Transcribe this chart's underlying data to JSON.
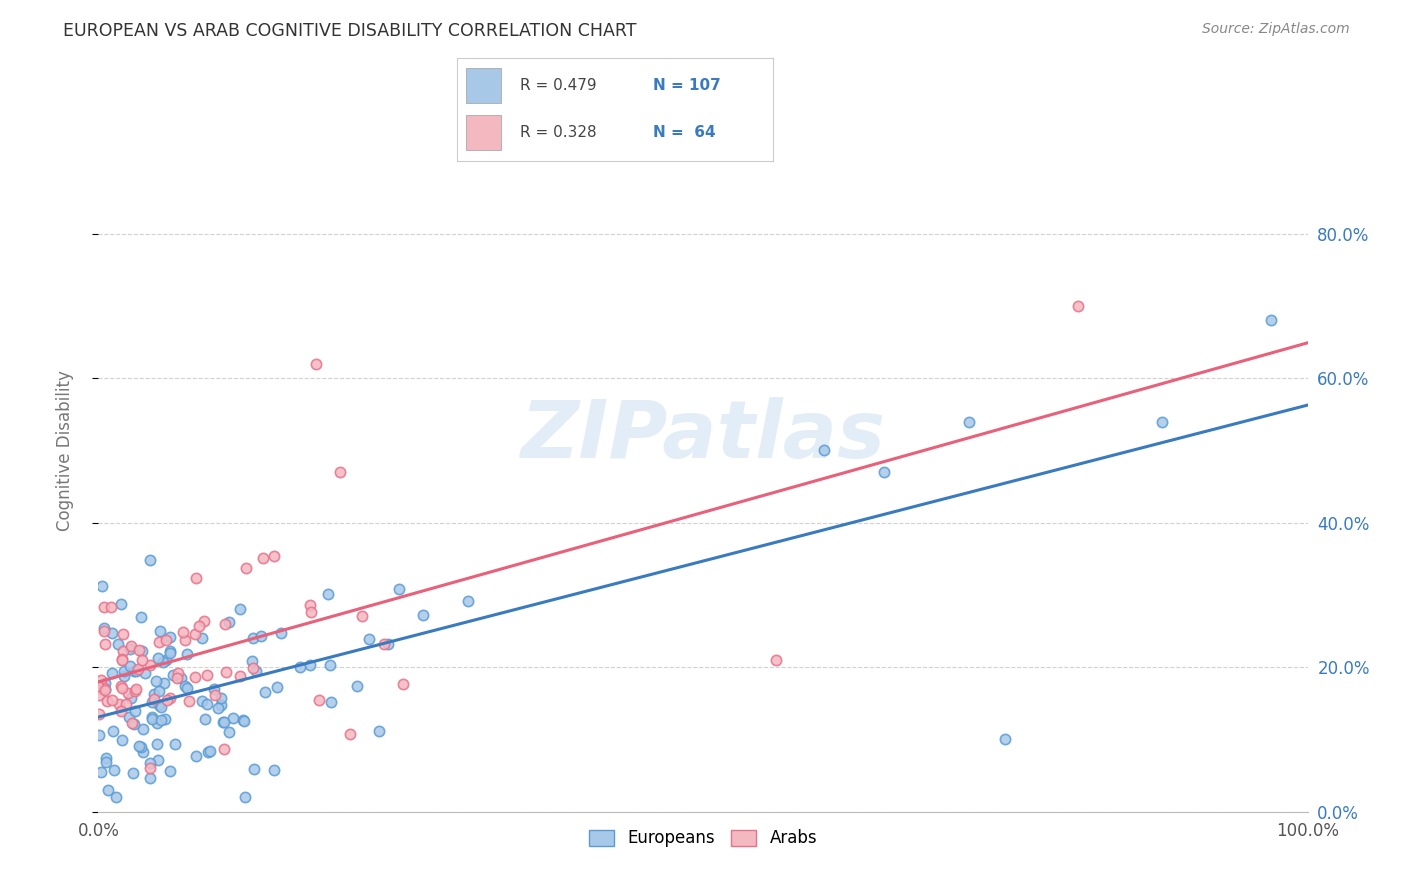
{
  "title": "EUROPEAN VS ARAB COGNITIVE DISABILITY CORRELATION CHART",
  "source": "Source: ZipAtlas.com",
  "ylabel": "Cognitive Disability",
  "xlim": [
    0,
    1
  ],
  "ylim": [
    0,
    1
  ],
  "yticks": [
    0.0,
    0.2,
    0.4,
    0.6,
    0.8
  ],
  "yticklabels_right": [
    "0.0%",
    "20.0%",
    "40.0%",
    "60.0%",
    "80.0%"
  ],
  "xtick_left_label": "0.0%",
  "xtick_right_label": "100.0%",
  "european_color": "#a8c8e8",
  "european_edge": "#5b9bd5",
  "arab_color": "#f4b8c1",
  "arab_edge": "#e8718a",
  "euro_line_color": "#3a7bbf",
  "arab_line_color": "#e8607a",
  "european_R": 0.479,
  "european_N": 107,
  "arab_R": 0.328,
  "arab_N": 64,
  "watermark": "ZIPatlas",
  "background_color": "#ffffff",
  "grid_color": "#cccccc",
  "legend_text_color": "#3a7bbf",
  "legend_N_color": "#e06020"
}
